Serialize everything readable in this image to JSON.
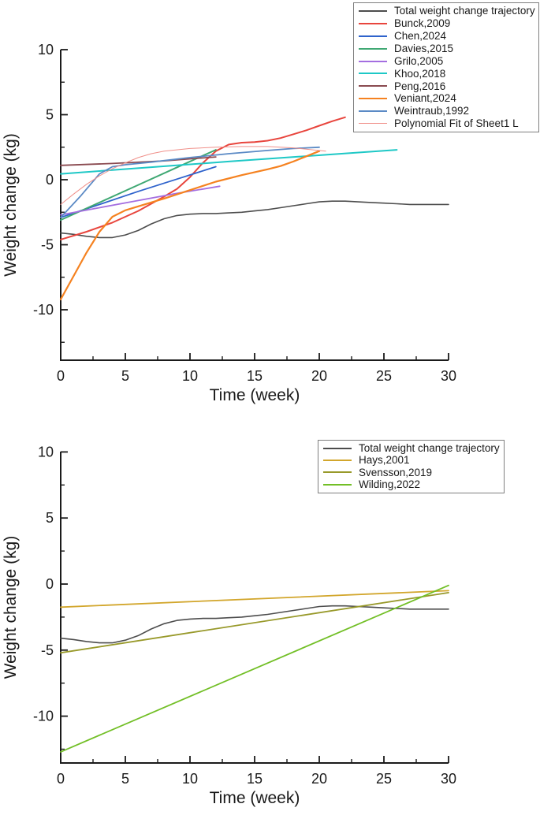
{
  "figure": {
    "background": "#ffffff",
    "axis_color": "#1a1a1a"
  },
  "chart_data": [
    {
      "type": "line",
      "title": "",
      "xlabel": "Time (week)",
      "ylabel": "Weight change (kg)",
      "xlim": [
        0,
        30
      ],
      "ylim": [
        -14,
        10
      ],
      "x_ticks": [
        0,
        5,
        10,
        15,
        20,
        25,
        30
      ],
      "y_ticks": [
        10,
        5,
        0,
        -5,
        -10
      ],
      "x_minor_ticks": [
        2.5,
        7.5,
        12.5,
        17.5,
        22.5,
        27.5
      ],
      "y_minor_ticks": [
        7.5,
        2.5,
        -2.5,
        -7.5,
        -12.5
      ],
      "grid": false,
      "legend_position": "top-right",
      "series": [
        {
          "name": "Total weight change trajectory",
          "color": "#4d4d4d",
          "width": 1.6,
          "x": [
            0,
            1,
            2,
            3,
            4,
            5,
            6,
            7,
            8,
            9,
            10,
            11,
            12,
            13,
            14,
            15,
            16,
            17,
            18,
            19,
            20,
            21,
            22,
            23,
            24,
            25,
            26,
            27,
            28,
            29,
            30
          ],
          "y": [
            -4.1,
            -4.2,
            -4.35,
            -4.45,
            -4.45,
            -4.25,
            -3.9,
            -3.4,
            -3.0,
            -2.75,
            -2.65,
            -2.6,
            -2.6,
            -2.55,
            -2.5,
            -2.4,
            -2.3,
            -2.15,
            -2.0,
            -1.85,
            -1.7,
            -1.65,
            -1.65,
            -1.7,
            -1.75,
            -1.8,
            -1.85,
            -1.9,
            -1.9,
            -1.9,
            -1.9
          ]
        },
        {
          "name": "Bunck,2009",
          "color": "#e8453d",
          "width": 2,
          "x": [
            0,
            2,
            4,
            6,
            8,
            9,
            10,
            11,
            12,
            13,
            14,
            15,
            16,
            17,
            18,
            19,
            20,
            21,
            22
          ],
          "y": [
            -4.6,
            -4.0,
            -3.3,
            -2.4,
            -1.3,
            -0.7,
            0.2,
            1.3,
            2.2,
            2.7,
            2.85,
            2.9,
            3.0,
            3.2,
            3.5,
            3.8,
            4.15,
            4.5,
            4.8
          ]
        },
        {
          "name": "Chen,2024",
          "color": "#2f63cc",
          "width": 1.8,
          "x": [
            0,
            3,
            6,
            9,
            12
          ],
          "y": [
            -2.9,
            -1.9,
            -0.9,
            0.05,
            1.0
          ]
        },
        {
          "name": "Davies,2015",
          "color": "#3fa873",
          "width": 2,
          "x": [
            0,
            3,
            6,
            9,
            12
          ],
          "y": [
            -3.1,
            -1.75,
            -0.4,
            0.95,
            2.3
          ]
        },
        {
          "name": "Grilo,2005",
          "color": "#a46ee0",
          "width": 1.8,
          "x": [
            0,
            3,
            6,
            9,
            12.3
          ],
          "y": [
            -2.7,
            -2.15,
            -1.6,
            -1.05,
            -0.5
          ]
        },
        {
          "name": "Khoo,2018",
          "color": "#1ec8c6",
          "width": 2,
          "x": [
            0,
            13,
            26
          ],
          "y": [
            0.45,
            1.4,
            2.3
          ]
        },
        {
          "name": "Peng,2016",
          "color": "#8a4a50",
          "width": 1.8,
          "x": [
            0,
            4,
            8,
            12
          ],
          "y": [
            1.1,
            1.25,
            1.45,
            1.75
          ]
        },
        {
          "name": "Veniant,2024",
          "color": "#f58220",
          "width": 2.2,
          "x": [
            0,
            1,
            2,
            3,
            4,
            5,
            6,
            8,
            10,
            12,
            14,
            16,
            17,
            18,
            19,
            20
          ],
          "y": [
            -9.2,
            -7.4,
            -5.6,
            -4.0,
            -2.85,
            -2.35,
            -2.05,
            -1.45,
            -0.8,
            -0.15,
            0.35,
            0.8,
            1.05,
            1.4,
            1.8,
            2.2
          ]
        },
        {
          "name": "Weintraub,1992",
          "color": "#5b8ac5",
          "width": 1.8,
          "x": [
            0,
            1.5,
            3,
            4,
            5,
            7,
            10,
            13,
            16,
            18,
            20
          ],
          "y": [
            -2.9,
            -1.3,
            0.45,
            1.0,
            1.15,
            1.35,
            1.7,
            2.0,
            2.25,
            2.4,
            2.5
          ]
        },
        {
          "name": "Polynomial Fit of Sheet1 L",
          "color": "#f0908a",
          "width": 1,
          "x": [
            0,
            1,
            2,
            3,
            4,
            5,
            6,
            7,
            8,
            10,
            12,
            14,
            16,
            18,
            20.5
          ],
          "y": [
            -1.9,
            -1.1,
            -0.35,
            0.3,
            0.85,
            1.3,
            1.7,
            2.0,
            2.2,
            2.4,
            2.5,
            2.55,
            2.55,
            2.45,
            2.2
          ]
        }
      ]
    },
    {
      "type": "line",
      "title": "",
      "xlabel": "Time (week)",
      "ylabel": "Weight change (kg)",
      "xlim": [
        0,
        30
      ],
      "ylim": [
        -13.5,
        10
      ],
      "x_ticks": [
        0,
        5,
        10,
        15,
        20,
        25,
        30
      ],
      "y_ticks": [
        10,
        5,
        0,
        -5,
        -10
      ],
      "x_minor_ticks": [
        2.5,
        7.5,
        12.5,
        17.5,
        22.5,
        27.5
      ],
      "y_minor_ticks": [
        7.5,
        2.5,
        -2.5,
        -7.5,
        -12.5
      ],
      "grid": false,
      "legend_position": "top-right",
      "series": [
        {
          "name": "Total weight change trajectory",
          "color": "#4d4d4d",
          "width": 1.6,
          "x": [
            0,
            1,
            2,
            3,
            4,
            5,
            6,
            7,
            8,
            9,
            10,
            11,
            12,
            13,
            14,
            15,
            16,
            17,
            18,
            19,
            20,
            21,
            22,
            23,
            24,
            25,
            26,
            27,
            28,
            29,
            30
          ],
          "y": [
            -4.1,
            -4.2,
            -4.35,
            -4.45,
            -4.45,
            -4.25,
            -3.9,
            -3.4,
            -3.0,
            -2.75,
            -2.65,
            -2.6,
            -2.6,
            -2.55,
            -2.5,
            -2.4,
            -2.3,
            -2.15,
            -2.0,
            -1.85,
            -1.7,
            -1.65,
            -1.65,
            -1.7,
            -1.75,
            -1.8,
            -1.85,
            -1.9,
            -1.9,
            -1.9,
            -1.9
          ]
        },
        {
          "name": "Hays,2001",
          "color": "#d2a62c",
          "width": 1.8,
          "x": [
            0,
            30
          ],
          "y": [
            -1.75,
            -0.5
          ]
        },
        {
          "name": "Svensson,2019",
          "color": "#98992a",
          "width": 1.8,
          "x": [
            0,
            30
          ],
          "y": [
            -5.2,
            -0.65
          ]
        },
        {
          "name": "Wilding,2022",
          "color": "#72bf26",
          "width": 1.8,
          "x": [
            0,
            30
          ],
          "y": [
            -12.7,
            -0.1
          ]
        }
      ]
    }
  ]
}
